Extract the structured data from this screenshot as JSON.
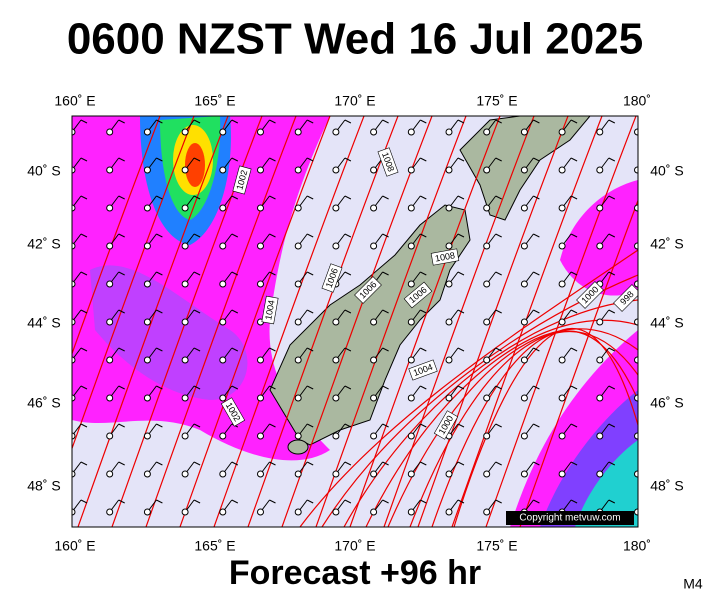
{
  "title": "0600 NZST Wed 16 Jul 2025",
  "footer": "Forecast +96 hr",
  "model": "M4",
  "copyright": "Copyright metvuw.com",
  "lon_labels": [
    "160˚ E",
    "165˚ E",
    "170˚ E",
    "175˚ E",
    "180˚"
  ],
  "lat_labels": [
    "40˚ S",
    "42˚ S",
    "44˚ S",
    "46˚ S",
    "48˚ S"
  ],
  "isobar_labels": [
    "1008",
    "1002",
    "1006",
    "1004",
    "1008",
    "1006",
    "1006",
    "1004",
    "1002",
    "1000",
    "1000",
    "998"
  ]
}
